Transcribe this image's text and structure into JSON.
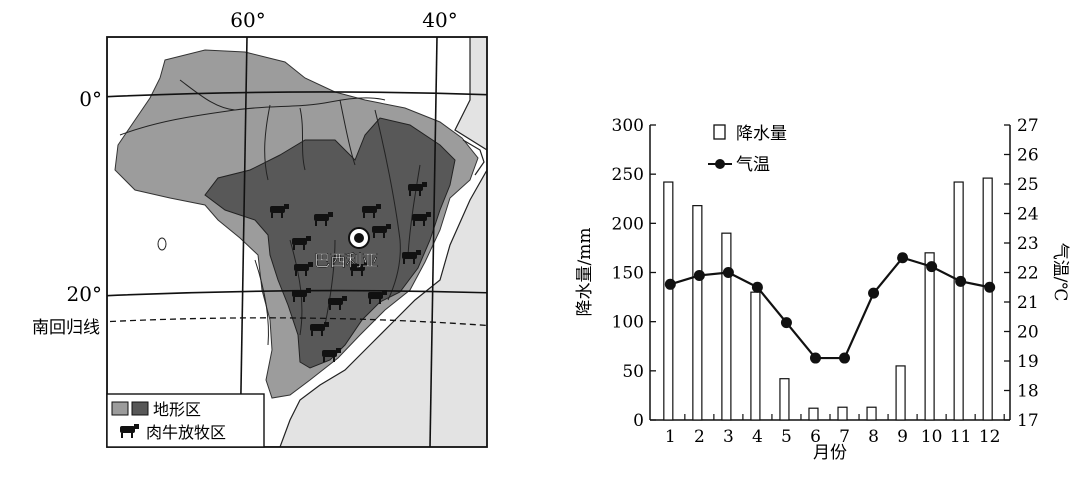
{
  "map": {
    "lon_labels": [
      "60°",
      "40°"
    ],
    "lat_labels": [
      "0°",
      "20°"
    ],
    "tropic_label": "南回归线",
    "city_label": "巴西利亚",
    "legend": {
      "terrain_label": "地形区",
      "cattle_label": "肉牛放牧区"
    },
    "colors": {
      "ocean": "#e3e3e3",
      "land": "#ffffff",
      "light_region": "#9c9c9c",
      "dark_region": "#585858"
    }
  },
  "chart_data": {
    "type": "bar+line",
    "categories": [
      "1",
      "2",
      "3",
      "4",
      "5",
      "6",
      "7",
      "8",
      "9",
      "10",
      "11",
      "12"
    ],
    "xlabel": "月份",
    "series": [
      {
        "name": "降水量",
        "type": "bar",
        "axis": "left",
        "values": [
          242,
          218,
          190,
          130,
          42,
          12,
          13,
          13,
          55,
          170,
          242,
          246
        ]
      },
      {
        "name": "气温",
        "type": "line",
        "axis": "right",
        "values": [
          21.6,
          21.9,
          22.0,
          21.5,
          20.3,
          19.1,
          19.1,
          21.3,
          22.5,
          22.2,
          21.7,
          21.5
        ]
      }
    ],
    "y_left": {
      "label": "降水量/mm",
      "min": 0,
      "max": 300,
      "ticks": [
        0,
        50,
        100,
        150,
        200,
        250,
        300
      ]
    },
    "y_right": {
      "label": "气温/℃",
      "min": 17,
      "max": 27,
      "ticks": [
        17,
        18,
        19,
        20,
        21,
        22,
        23,
        24,
        25,
        26,
        27
      ]
    },
    "legend": [
      "降水量",
      "气温"
    ]
  }
}
